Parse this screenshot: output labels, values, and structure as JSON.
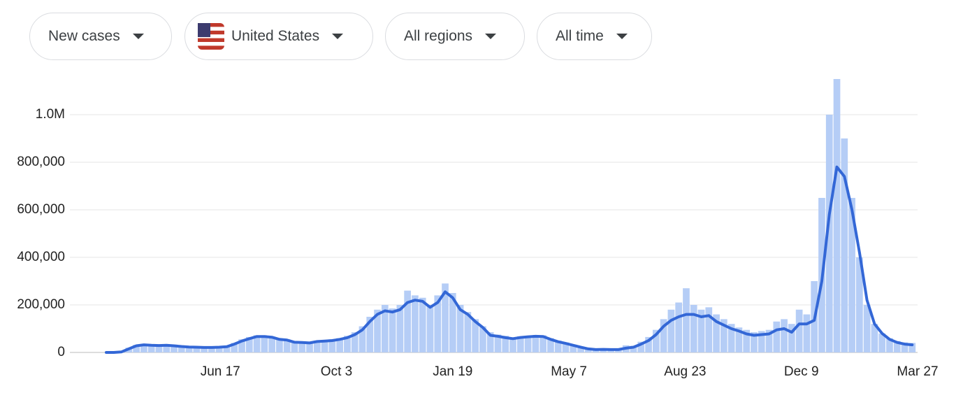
{
  "controls": [
    "New cases",
    "United States",
    "All regions",
    "All time"
  ],
  "chart_data": {
    "type": "combo",
    "x": [
      0,
      7,
      14,
      21,
      28,
      35,
      42,
      49,
      56,
      63,
      70,
      77,
      84,
      91,
      98,
      105,
      112,
      119,
      126,
      133,
      140,
      147,
      154,
      161,
      168,
      175,
      182,
      189,
      196,
      203,
      210,
      217,
      224,
      231,
      238,
      245,
      252,
      259,
      266,
      273,
      280,
      287,
      294,
      301,
      308,
      315,
      322,
      329,
      336,
      343,
      350,
      357,
      364,
      371,
      378,
      385,
      392,
      399,
      406,
      413,
      420,
      427,
      434,
      441,
      448,
      455,
      462,
      469,
      476,
      483,
      490,
      497,
      504,
      511,
      518,
      525,
      532,
      539,
      546,
      553,
      560,
      567,
      574,
      581,
      588,
      595,
      602,
      609,
      616,
      623,
      630,
      637,
      644,
      651,
      658,
      665,
      672,
      679,
      686,
      693,
      700,
      707,
      714,
      721,
      728,
      735,
      742,
      749
    ],
    "series": [
      {
        "type": "bar",
        "color": "#b5cdf6",
        "values": [
          0,
          0,
          3000,
          20000,
          32000,
          35000,
          32000,
          30000,
          33000,
          30000,
          27000,
          25000,
          24000,
          22000,
          23000,
          25000,
          28000,
          40000,
          55000,
          65000,
          72000,
          70000,
          66000,
          58000,
          55000,
          46000,
          45000,
          42000,
          50000,
          52000,
          55000,
          60000,
          70000,
          85000,
          110000,
          150000,
          180000,
          200000,
          185000,
          200000,
          260000,
          240000,
          230000,
          200000,
          240000,
          290000,
          250000,
          200000,
          170000,
          140000,
          110000,
          85000,
          75000,
          70000,
          62000,
          68000,
          70000,
          72000,
          72000,
          60000,
          50000,
          42000,
          33000,
          25000,
          18000,
          15000,
          16000,
          14000,
          14000,
          30000,
          28000,
          45000,
          65000,
          95000,
          140000,
          180000,
          210000,
          270000,
          200000,
          180000,
          190000,
          160000,
          140000,
          120000,
          105000,
          95000,
          85000,
          90000,
          95000,
          130000,
          140000,
          120000,
          180000,
          160000,
          300000,
          650000,
          1000000,
          1150000,
          900000,
          650000,
          400000,
          200000,
          120000,
          80000,
          60000,
          48000,
          42000,
          40000
        ]
      },
      {
        "type": "line",
        "color": "#3367d6",
        "values": [
          0,
          0,
          2000,
          15000,
          28000,
          32000,
          30000,
          29000,
          30000,
          28000,
          25000,
          23000,
          22000,
          21000,
          21000,
          22000,
          24000,
          35000,
          48000,
          58000,
          67000,
          67000,
          64000,
          55000,
          52000,
          43000,
          42000,
          40000,
          46000,
          48000,
          50000,
          55000,
          62000,
          75000,
          95000,
          130000,
          160000,
          175000,
          170000,
          180000,
          210000,
          220000,
          215000,
          190000,
          210000,
          255000,
          230000,
          180000,
          160000,
          130000,
          105000,
          72000,
          68000,
          62000,
          58000,
          63000,
          66000,
          68000,
          67000,
          55000,
          45000,
          38000,
          30000,
          22000,
          15000,
          12000,
          13000,
          12000,
          12000,
          18000,
          22000,
          35000,
          50000,
          75000,
          110000,
          135000,
          150000,
          160000,
          160000,
          150000,
          155000,
          130000,
          115000,
          100000,
          90000,
          78000,
          72000,
          75000,
          78000,
          95000,
          100000,
          85000,
          120000,
          120000,
          135000,
          300000,
          580000,
          780000,
          740000,
          600000,
          420000,
          220000,
          120000,
          80000,
          55000,
          42000,
          35000,
          32000
        ]
      }
    ],
    "xlim": [
      0,
      754
    ],
    "xticks": [
      {
        "value": 106,
        "label": "Jun 17"
      },
      {
        "value": 214,
        "label": "Oct 3"
      },
      {
        "value": 322,
        "label": "Jan 19"
      },
      {
        "value": 430,
        "label": "May 7"
      },
      {
        "value": 538,
        "label": "Aug 23"
      },
      {
        "value": 646,
        "label": "Dec 9"
      },
      {
        "value": 754,
        "label": "Mar 27"
      }
    ],
    "ylim": [
      0,
      1150000
    ],
    "yticks": [
      0,
      {
        "value": 200000,
        "label": "200,000"
      },
      {
        "value": 400000,
        "label": "400,000"
      },
      {
        "value": 600000,
        "label": "600,000"
      },
      {
        "value": 800000,
        "label": "800,000"
      },
      {
        "value": 1000000,
        "label": "1.0M"
      }
    ],
    "grid": true
  }
}
